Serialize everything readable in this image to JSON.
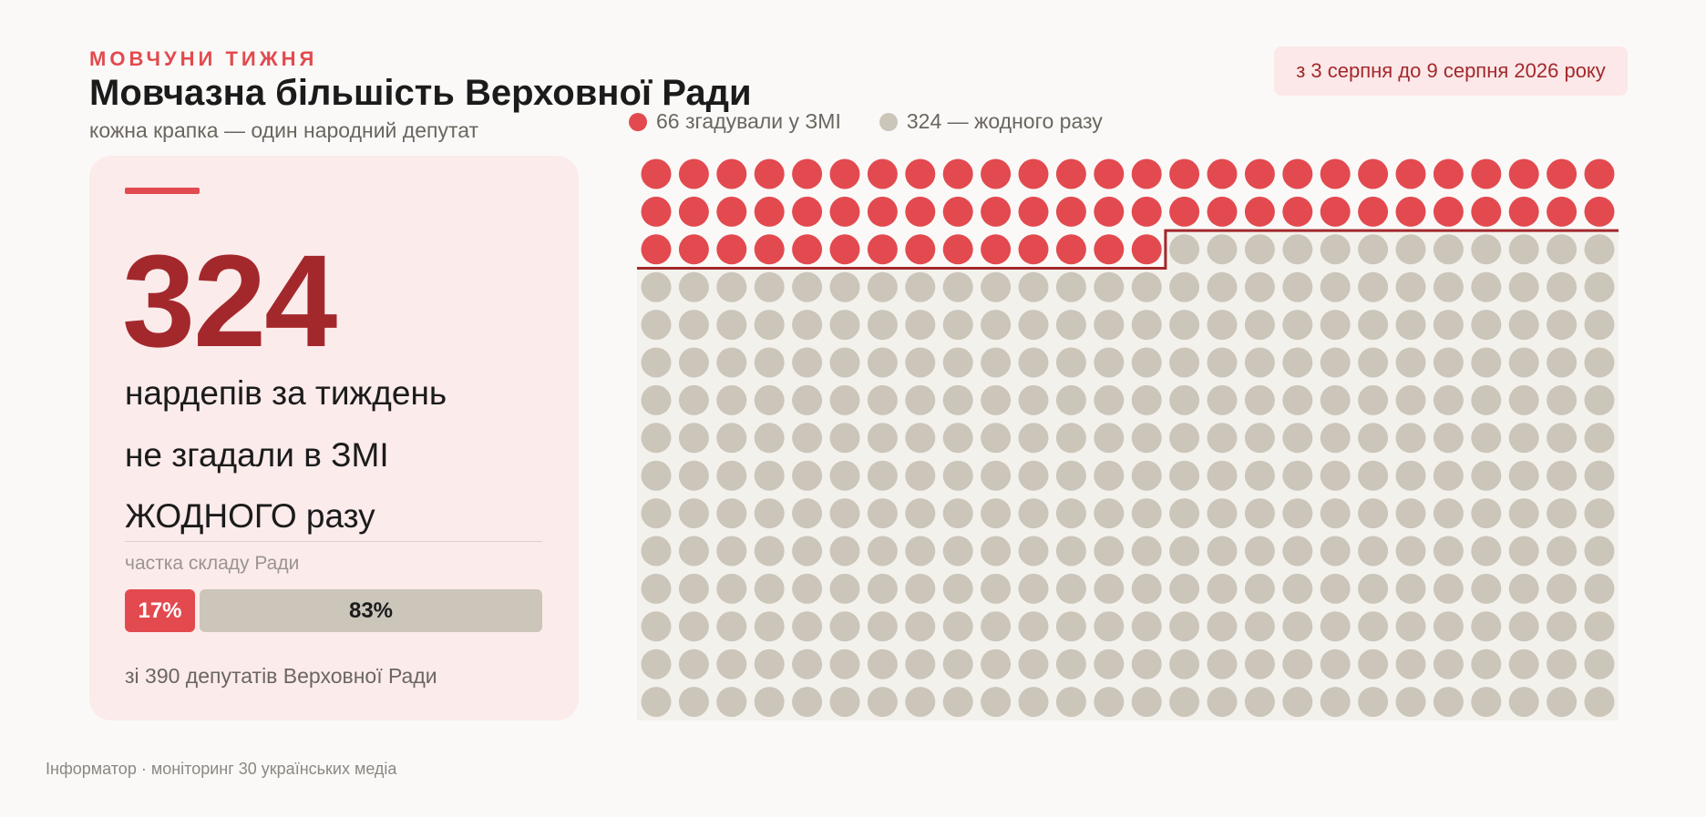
{
  "header": {
    "kicker": "МОВЧУНИ ТИЖНЯ",
    "title": "Мовчазна більшість Верховної Ради",
    "subtitle": "кожна крапка — один народний депутат",
    "date_range": "з 3 серпня до 9 серпня 2026 року"
  },
  "legend": {
    "mentioned": "66 згадували у ЗМІ",
    "not_mentioned": "324 — жодного разу"
  },
  "card": {
    "big_number": "324",
    "line1": "нардепів за тиждень",
    "line2": "не згадали в ЗМІ",
    "line3": "ЖОДНОГО разу",
    "share_label": "частка складу Ради",
    "share_mentioned": "17%",
    "share_not_mentioned": "83%",
    "share_fraction_mentioned": 0.17,
    "total_note": "зі 390 депутатів Верховної Ради"
  },
  "colors": {
    "mentioned": "#e24a4f",
    "not_mentioned": "#cbc5ba",
    "accent_dark": "#a3282c",
    "grid_bg": "#f3f1ec"
  },
  "chart_data": {
    "type": "waffle",
    "columns": 26,
    "rows": 15,
    "total": 390,
    "series": [
      {
        "name": "66 згадували у ЗМІ",
        "value": 66
      },
      {
        "name": "324 — жодного разу",
        "value": 324
      }
    ]
  },
  "footer": {
    "source": "Інформатор · моніторинг 30 українських медіа"
  }
}
